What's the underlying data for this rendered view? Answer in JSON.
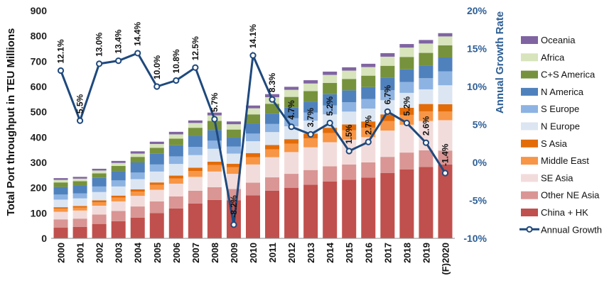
{
  "chart_data": {
    "type": "bar",
    "stacked": true,
    "title": "",
    "ylabel": "Total Port throughput in TEU Millions",
    "y2label": "Annual Growth Rate",
    "ylim": [
      0,
      900
    ],
    "y2lim": [
      -10,
      20
    ],
    "yticks": [
      "0",
      "100",
      "200",
      "300",
      "400",
      "500",
      "600",
      "700",
      "800",
      "900"
    ],
    "y2ticks": [
      "-10%",
      "-5%",
      "0%",
      "5%",
      "10%",
      "15%",
      "20%"
    ],
    "grid": false,
    "legend_position": "right",
    "categories": [
      "2000",
      "2001",
      "2002",
      "2003",
      "2004",
      "2005",
      "2006",
      "2007",
      "2008",
      "2009",
      "2010",
      "2011",
      "2012",
      "2013",
      "2014",
      "2015",
      "2016",
      "2017",
      "2018",
      "2019",
      "(F)2020"
    ],
    "series": [
      {
        "name": "China + HK",
        "color": "#c0504d",
        "values": [
          42,
          45,
          57,
          68,
          82,
          100,
          118,
          138,
          152,
          150,
          170,
          188,
          200,
          212,
          225,
          232,
          240,
          258,
          272,
          282,
          292
        ]
      },
      {
        "name": "Other NE Asia",
        "color": "#d99694",
        "values": [
          33,
          33,
          37,
          40,
          44,
          46,
          48,
          50,
          50,
          45,
          50,
          53,
          55,
          58,
          60,
          60,
          60,
          64,
          67,
          66,
          55
        ]
      },
      {
        "name": "SE Asia",
        "color": "#f2dcdb",
        "values": [
          30,
          32,
          35,
          38,
          42,
          46,
          50,
          55,
          62,
          60,
          72,
          80,
          86,
          90,
          95,
          98,
          100,
          104,
          110,
          116,
          120
        ]
      },
      {
        "name": "Middle East",
        "color": "#f79646",
        "values": [
          12,
          12,
          14,
          15,
          17,
          19,
          21,
          23,
          26,
          26,
          29,
          31,
          33,
          35,
          36,
          37,
          37,
          38,
          39,
          38,
          34
        ]
      },
      {
        "name": "S Asia",
        "color": "#e36c09",
        "values": [
          6,
          6,
          7,
          8,
          9,
          10,
          11,
          13,
          13,
          14,
          16,
          17,
          18,
          19,
          21,
          23,
          25,
          26,
          28,
          29,
          29
        ]
      },
      {
        "name": "N Europe",
        "color": "#dce6f2",
        "values": [
          30,
          30,
          33,
          36,
          40,
          43,
          46,
          50,
          51,
          40,
          47,
          51,
          51,
          51,
          53,
          51,
          51,
          56,
          59,
          58,
          75
        ]
      },
      {
        "name": "S Europe",
        "color": "#8db3e2",
        "values": [
          20,
          20,
          22,
          24,
          26,
          28,
          30,
          32,
          32,
          28,
          30,
          32,
          32,
          32,
          35,
          37,
          38,
          40,
          43,
          44,
          55
        ]
      },
      {
        "name": "N America",
        "color": "#4f81bd",
        "values": [
          30,
          31,
          34,
          37,
          40,
          42,
          44,
          44,
          42,
          35,
          40,
          41,
          43,
          43,
          45,
          47,
          47,
          48,
          50,
          50,
          55
        ]
      },
      {
        "name": "C+S America",
        "color": "#76923c",
        "values": [
          18,
          17,
          18,
          20,
          22,
          24,
          26,
          32,
          36,
          32,
          36,
          39,
          41,
          42,
          44,
          45,
          45,
          48,
          49,
          50,
          48
        ]
      },
      {
        "name": "Africa",
        "color": "#d7e4bc",
        "values": [
          10,
          10,
          11,
          12,
          13,
          15,
          17,
          19,
          22,
          21,
          24,
          26,
          28,
          30,
          32,
          33,
          34,
          36,
          37,
          37,
          35
        ]
      },
      {
        "name": "Oceania",
        "color": "#8064a2",
        "values": [
          7,
          7,
          7,
          8,
          9,
          9,
          10,
          10,
          11,
          11,
          11,
          12,
          12,
          13,
          13,
          13,
          13,
          14,
          14,
          14,
          13
        ]
      }
    ],
    "line_series": {
      "name": "Annual Growth",
      "color": "#1f497d",
      "axis": "right",
      "values": [
        12.1,
        5.5,
        13.0,
        13.4,
        14.4,
        10.0,
        10.8,
        12.5,
        5.7,
        -8.2,
        14.1,
        8.3,
        4.7,
        3.7,
        5.2,
        1.5,
        2.7,
        6.7,
        5.2,
        2.6,
        -1.4
      ],
      "labels": [
        "12.1%",
        "5.5%",
        "13.0%",
        "13.4%",
        "14.4%",
        "10.0%",
        "10.8%",
        "12.5%",
        "5.7%",
        "-8.2%",
        "14.1%",
        "8.3%",
        "4.7%",
        "3.7%",
        "5.2%",
        "1.5%",
        "2.7%",
        "6.7%",
        "5.2%",
        "2.6%",
        "-1.4%"
      ]
    },
    "legend": [
      "Oceania",
      "Africa",
      "C+S America",
      "N America",
      "S Europe",
      "N Europe",
      "S Asia",
      "Middle East",
      "SE Asia",
      "Other NE Asia",
      "China + HK",
      "Annual Growth"
    ]
  }
}
